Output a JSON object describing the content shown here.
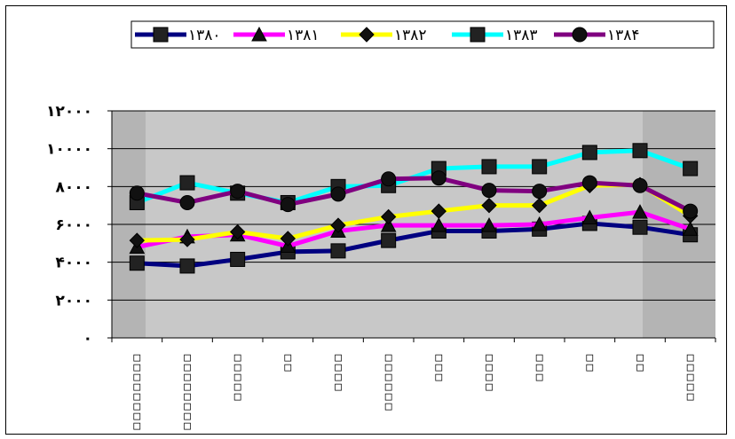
{
  "chart_data": {
    "type": "line",
    "title": "",
    "xlabel": "",
    "ylabel": "",
    "ylim": [
      0,
      12000
    ],
    "yticks": [
      0,
      2000,
      4000,
      6000,
      8000,
      10000,
      12000
    ],
    "ytick_labels": [
      "۰",
      "۲۰۰۰",
      "۴۰۰۰",
      "۶۰۰۰",
      "۸۰۰۰",
      "۱۰۰۰۰",
      "۱۲۰۰۰"
    ],
    "grid": true,
    "legend_position": "top",
    "categories": [
      "□□□□□□□□",
      "□□□□□□□□",
      "□□□□□",
      "□□",
      "□□□□",
      "□□□□□□",
      "□□□",
      "□□□□",
      "□□□",
      "□□",
      "□□",
      "□□□□□"
    ],
    "series": [
      {
        "name": "۱۳۸۰",
        "color": "#000080",
        "marker": "square",
        "values": [
          3950,
          3800,
          4150,
          4550,
          4600,
          5150,
          5650,
          5650,
          5750,
          6050,
          5850,
          5450
        ]
      },
      {
        "name": "۱۳۸۱",
        "color": "#FF00FF",
        "marker": "triangle",
        "values": [
          4800,
          5350,
          5450,
          4850,
          5650,
          5950,
          5950,
          5950,
          6000,
          6350,
          6650,
          5750
        ]
      },
      {
        "name": "۱۳۸۲",
        "color": "#FFFF00",
        "marker": "diamond",
        "values": [
          5150,
          5200,
          5600,
          5250,
          5950,
          6400,
          6700,
          7000,
          7000,
          8050,
          8100,
          6450
        ]
      },
      {
        "name": "۱۳۸۳",
        "color": "#00FFFF",
        "marker": "square",
        "values": [
          7150,
          8200,
          7650,
          7150,
          8000,
          8050,
          8950,
          9050,
          9050,
          9800,
          9900,
          8950
        ]
      },
      {
        "name": "۱۳۸۴",
        "color": "#800080",
        "marker": "circle",
        "values": [
          7650,
          7150,
          7750,
          7050,
          7600,
          8400,
          8450,
          7800,
          7750,
          8200,
          8050,
          6700
        ]
      }
    ]
  }
}
